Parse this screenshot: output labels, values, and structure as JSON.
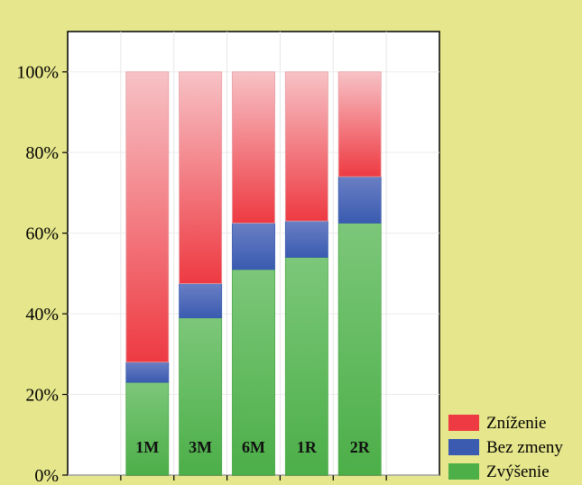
{
  "chart_data": {
    "type": "bar",
    "stacked": true,
    "percent": true,
    "categories": [
      "1M",
      "3M",
      "6M",
      "1R",
      "2R"
    ],
    "series": [
      {
        "name": "Zvýšenie",
        "values": [
          23,
          39,
          51,
          54,
          62.5
        ],
        "color": "#52b84a"
      },
      {
        "name": "Bez zmeny",
        "values": [
          5,
          8.5,
          11.5,
          9,
          11.5
        ],
        "color": "#3a5bb0"
      },
      {
        "name": "Zníženie",
        "values": [
          72,
          52.5,
          37.5,
          37,
          26
        ],
        "color": "#ee4a50"
      }
    ],
    "ylim": [
      0,
      110
    ],
    "yticks": [
      "0%",
      "20%",
      "40%",
      "60%",
      "80%",
      "100%"
    ],
    "ytick_values": [
      0,
      20,
      40,
      60,
      80,
      100
    ],
    "legend": {
      "placement": "bottom-right",
      "entries": [
        "Zníženie",
        "Bez zmeny",
        "Zvýšenie"
      ]
    },
    "grid": true,
    "title": "",
    "xlabel": "",
    "ylabel": ""
  }
}
